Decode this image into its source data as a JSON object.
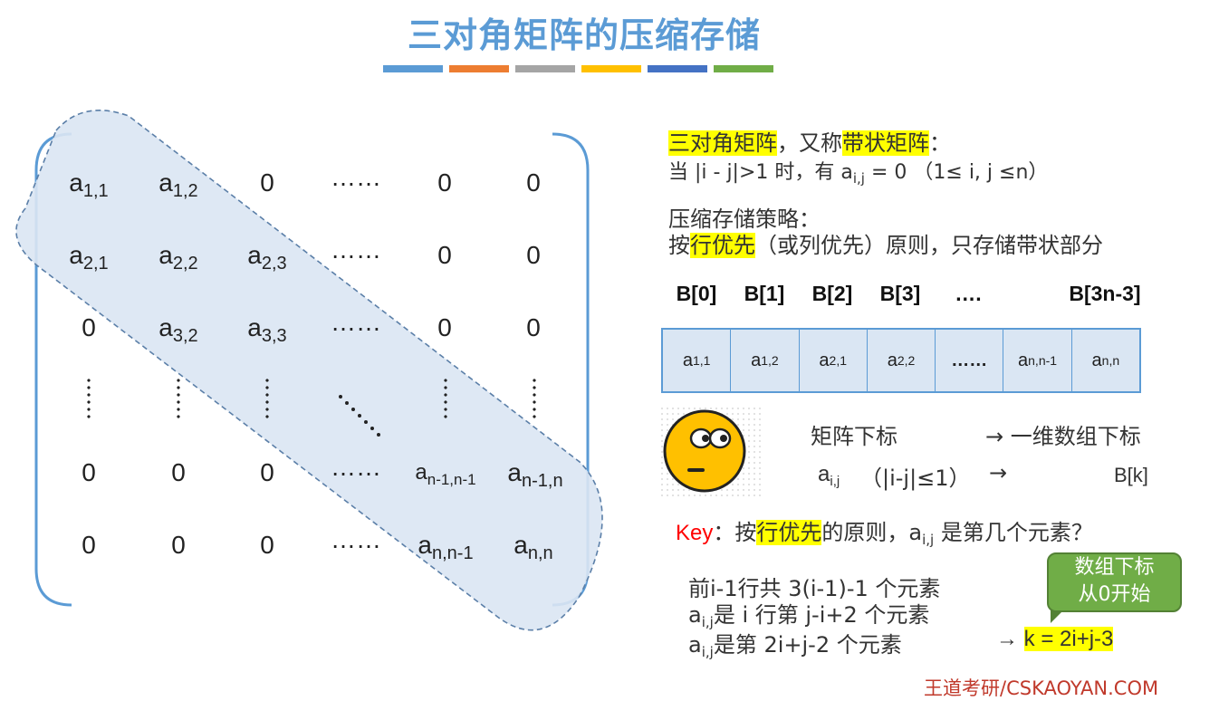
{
  "title": "三对角矩阵的压缩存储",
  "colors": {
    "title": "#5b9bd5",
    "underline_bars": [
      "#5b9bd5",
      "#ed7d31",
      "#a5a5a5",
      "#ffc000",
      "#4472c4",
      "#70ad47"
    ],
    "band_fill": "#dae6f3",
    "band_stroke": "#5b7fa8",
    "highlight": "#ffff00",
    "callout": "#70ad47",
    "watermark": "#c0392b"
  },
  "matrix": {
    "row1": {
      "c1b": "a",
      "c1s": "1,1",
      "c2b": "a",
      "c2s": "1,2",
      "c3": "0",
      "c4": "……",
      "c5": "0",
      "c6": "0"
    },
    "row2": {
      "c1b": "a",
      "c1s": "2,1",
      "c2b": "a",
      "c2s": "2,2",
      "c3b": "a",
      "c3s": "2,3",
      "c4": "……",
      "c5": "0",
      "c6": "0"
    },
    "row3": {
      "c1": "0",
      "c2b": "a",
      "c2s": "3,2",
      "c3b": "a",
      "c3s": "3,3",
      "c4": "……",
      "c5": "0",
      "c6": "0"
    },
    "row5": {
      "c1": "0",
      "c2": "0",
      "c3": "0",
      "c4": "……",
      "c5b": "a",
      "c5s": "n-1,n-1",
      "c6b": "a",
      "c6s": "n-1,n"
    },
    "row6": {
      "c1": "0",
      "c2": "0",
      "c3": "0",
      "c4": "……",
      "c5b": "a",
      "c5s": "n,n-1",
      "c6b": "a",
      "c6s": "n,n"
    }
  },
  "definition": {
    "term1": "三对角矩阵",
    "mid": "，又称",
    "term2": "带状矩阵",
    "colon": "：",
    "cond_prefix": "当 |i - j|>1 时，有 a",
    "cond_sub": "i,j",
    "cond_suffix": " = 0 （1≤ i, j ≤n）"
  },
  "strategy": {
    "heading": "压缩存储策略：",
    "line_prefix": "按",
    "line_hl": "行优先",
    "line_suffix": "（或列优先）原则，只存储带状部分"
  },
  "array_headers": [
    "B[0]",
    "B[1]",
    "B[2]",
    "B[3]",
    "….",
    "",
    "B[3n-3]"
  ],
  "array_cells": [
    {
      "b": "a",
      "s": "1,1"
    },
    {
      "b": "a",
      "s": "1,2"
    },
    {
      "b": "a",
      "s": "2,1"
    },
    {
      "b": "a",
      "s": "2,2"
    },
    {
      "b": "……",
      "s": ""
    },
    {
      "b": "a",
      "s": "n,n-1"
    },
    {
      "b": "a",
      "s": "n,n"
    }
  ],
  "mapping": {
    "left1": "矩阵下标",
    "right1": "→ 一维数组下标",
    "a_base": "a",
    "a_sub": "i,j",
    "cond": "（|i-j|≤1）",
    "arrow": "→",
    "target": "B[k]"
  },
  "question": {
    "key": "Key",
    "colon": "：按",
    "hl": "行优先",
    "mid": "的原则，a",
    "sub": "i,j",
    "suffix": " 是第几个元素？"
  },
  "derivation": {
    "line1": "前i-1行共 3(i-1)-1 个元素",
    "line2_base": "a",
    "line2_sub": "i,j",
    "line2_rest": "是 i 行第 j-i+2 个元素",
    "line3_base": "a",
    "line3_sub": "i,j",
    "line3_rest": "是第 2i+j-2 个元素",
    "result_arrow": "→ ",
    "result": "k = 2i+j-3"
  },
  "callout": {
    "line1": "数组下标",
    "line2": "从0开始"
  },
  "watermark": "王道考研/CSKAOYAN.COM",
  "icons": {
    "face": "thinking-face-icon"
  }
}
